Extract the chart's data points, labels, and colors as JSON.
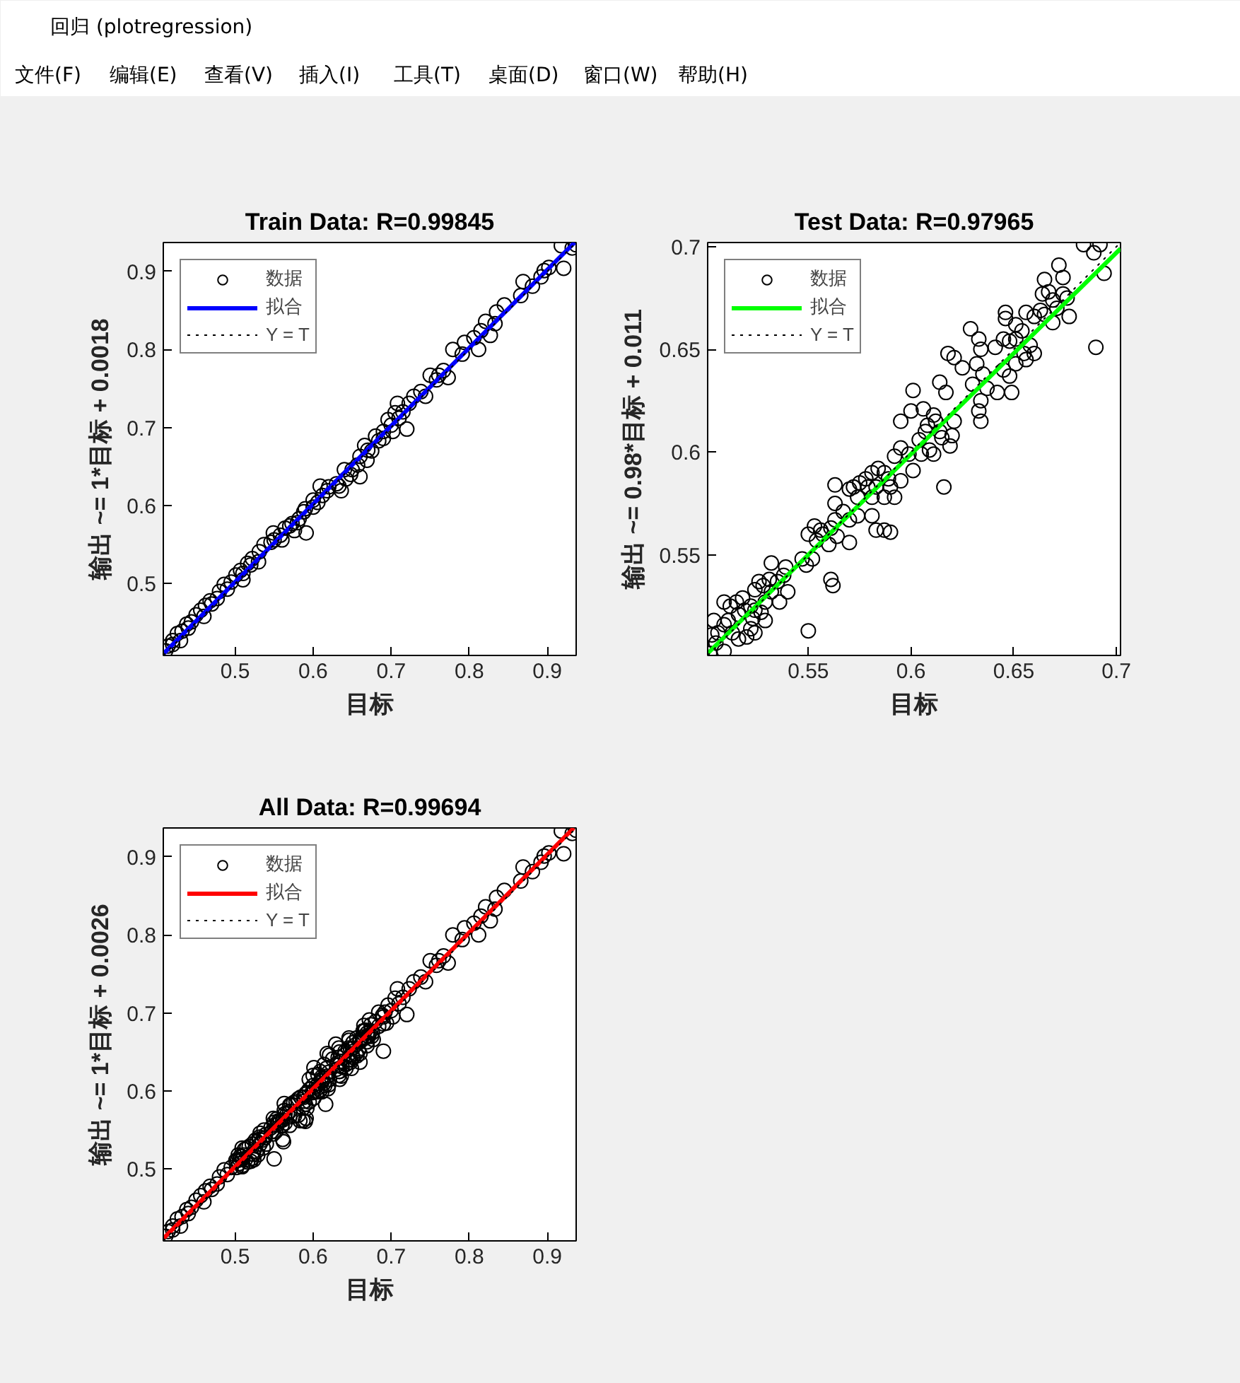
{
  "chart_data": [
    {
      "type": "other",
      "title": "回归 (plotregression)",
      "annotations": [
        "文件(F)",
        "编辑(E)",
        "查看(V)",
        "插入(I)",
        "工具(T)",
        "桌面(D)",
        "窗口(W)",
        "帮助(H)"
      ]
    },
    {
      "type": "scatter",
      "title": "Train Data: R=0.99845",
      "xlabel": "目标",
      "ylabel": "输出 ~= 1*目标 + 0.0018",
      "xlim": [
        0.408,
        0.937
      ],
      "ylim": [
        0.408,
        0.937
      ],
      "xticks": [
        0.5,
        0.6,
        0.7,
        0.8,
        0.9
      ],
      "yticks": [
        0.5,
        0.6,
        0.7,
        0.8,
        0.9
      ],
      "legend": "top left",
      "series": [
        {
          "name": "数据",
          "type": "scatter",
          "marker": "circle",
          "color": "#000000",
          "x": [
            0.918,
            0.937,
            0.932,
            0.921,
            0.902,
            0.896,
            0.892,
            0.869,
            0.881,
            0.866,
            0.845,
            0.835,
            0.833,
            0.821,
            0.815,
            0.827,
            0.806,
            0.812,
            0.794,
            0.791,
            0.779,
            0.761,
            0.758,
            0.767,
            0.773,
            0.75,
            0.738,
            0.744,
            0.729,
            0.723,
            0.708,
            0.705,
            0.72,
            0.696,
            0.702,
            0.69,
            0.684,
            0.675,
            0.666,
            0.669,
            0.657,
            0.66,
            0.648,
            0.642,
            0.633,
            0.636,
            0.618,
            0.612,
            0.606,
            0.609,
            0.6,
            0.588,
            0.591,
            0.582,
            0.573,
            0.576,
            0.564,
            0.558,
            0.549,
            0.546,
            0.537,
            0.531,
            0.522,
            0.516,
            0.507,
            0.51,
            0.501,
            0.495,
            0.486,
            0.48,
            0.477,
            0.468,
            0.462,
            0.456,
            0.45,
            0.444,
            0.438,
            0.432,
            0.426,
            0.42,
            0.414,
            0.411,
            0.55,
            0.56,
            0.57,
            0.58,
            0.59,
            0.6,
            0.62,
            0.63,
            0.64,
            0.65,
            0.66,
            0.67,
            0.68,
            0.69,
            0.7,
            0.71,
            0.715,
            0.53,
            0.52,
            0.51,
            0.49,
            0.47,
            0.46,
            0.44,
            0.43,
            0.42
          ],
          "values": [
            0.933,
            0.934,
            0.93,
            0.904,
            0.905,
            0.901,
            0.893,
            0.887,
            0.881,
            0.869,
            0.857,
            0.848,
            0.833,
            0.836,
            0.824,
            0.818,
            0.815,
            0.8,
            0.809,
            0.794,
            0.8,
            0.767,
            0.761,
            0.773,
            0.764,
            0.767,
            0.746,
            0.74,
            0.74,
            0.731,
            0.731,
            0.719,
            0.698,
            0.71,
            0.695,
            0.695,
            0.683,
            0.67,
            0.677,
            0.658,
            0.652,
            0.637,
            0.64,
            0.634,
            0.625,
            0.619,
            0.619,
            0.613,
            0.604,
            0.625,
            0.598,
            0.592,
            0.565,
            0.583,
            0.577,
            0.568,
            0.571,
            0.562,
            0.565,
            0.553,
            0.55,
            0.541,
            0.532,
            0.526,
            0.517,
            0.505,
            0.511,
            0.502,
            0.499,
            0.49,
            0.481,
            0.478,
            0.472,
            0.466,
            0.46,
            0.451,
            0.448,
            0.439,
            0.436,
            0.427,
            0.42,
            0.414,
            0.556,
            0.556,
            0.574,
            0.578,
            0.596,
            0.607,
            0.624,
            0.628,
            0.646,
            0.646,
            0.663,
            0.671,
            0.689,
            0.686,
            0.703,
            0.712,
            0.72,
            0.528,
            0.524,
            0.513,
            0.493,
            0.474,
            0.458,
            0.443,
            0.427,
            0.422
          ]
        },
        {
          "name": "拟合",
          "type": "line",
          "line_style": "solid",
          "color": "#0000ff",
          "x": [
            0.408,
            0.935
          ],
          "values": [
            0.41,
            0.937
          ]
        },
        {
          "name": "Y = T",
          "type": "line",
          "line_style": "dotted",
          "color": "#000000",
          "x": [
            0.408,
            0.937
          ],
          "values": [
            0.408,
            0.937
          ]
        }
      ]
    },
    {
      "type": "scatter",
      "title": "Test Data: R=0.97965",
      "xlabel": "目标",
      "ylabel": "输出 ~= 0.98*目标 + 0.011",
      "xlim": [
        0.501,
        0.702
      ],
      "ylim": [
        0.501,
        0.702
      ],
      "xticks": [
        0.55,
        0.6,
        0.65,
        0.7
      ],
      "yticks": [
        0.55,
        0.6,
        0.65,
        0.7
      ],
      "legend": "top left",
      "series": [
        {
          "name": "数据",
          "type": "scatter",
          "marker": "circle",
          "color": "#000000",
          "x": [
            0.684,
            0.692,
            0.689,
            0.694,
            0.69,
            0.672,
            0.674,
            0.665,
            0.667,
            0.664,
            0.669,
            0.674,
            0.676,
            0.671,
            0.677,
            0.663,
            0.669,
            0.665,
            0.66,
            0.646,
            0.646,
            0.651,
            0.656,
            0.654,
            0.651,
            0.645,
            0.641,
            0.648,
            0.658,
            0.66,
            0.655,
            0.656,
            0.651,
            0.645,
            0.648,
            0.649,
            0.642,
            0.637,
            0.629,
            0.633,
            0.634,
            0.632,
            0.635,
            0.634,
            0.634,
            0.633,
            0.63,
            0.618,
            0.621,
            0.625,
            0.614,
            0.617,
            0.601,
            0.6,
            0.595,
            0.606,
            0.611,
            0.608,
            0.612,
            0.607,
            0.604,
            0.605,
            0.611,
            0.609,
            0.62,
            0.621,
            0.614,
            0.615,
            0.619,
            0.599,
            0.601,
            0.595,
            0.592,
            0.589,
            0.587,
            0.584,
            0.581,
            0.578,
            0.575,
            0.572,
            0.579,
            0.583,
            0.59,
            0.592,
            0.587,
            0.581,
            0.574,
            0.57,
            0.563,
            0.616,
            0.595,
            0.563,
            0.567,
            0.57,
            0.574,
            0.581,
            0.583,
            0.587,
            0.59,
            0.563,
            0.561,
            0.556,
            0.553,
            0.55,
            0.554,
            0.557,
            0.564,
            0.57,
            0.56,
            0.552,
            0.547,
            0.549,
            0.561,
            0.562,
            0.532,
            0.539,
            0.538,
            0.535,
            0.531,
            0.528,
            0.526,
            0.524,
            0.532,
            0.54,
            0.536,
            0.529,
            0.524,
            0.522,
            0.518,
            0.515,
            0.512,
            0.509,
            0.516,
            0.519,
            0.523,
            0.527,
            0.529,
            0.522,
            0.524,
            0.52,
            0.516,
            0.511,
            0.509,
            0.504,
            0.503,
            0.506,
            0.505,
            0.502,
            0.509,
            0.513,
            0.55
          ],
          "values": [
            0.701,
            0.701,
            0.697,
            0.687,
            0.651,
            0.691,
            0.685,
            0.684,
            0.678,
            0.677,
            0.674,
            0.677,
            0.675,
            0.67,
            0.666,
            0.669,
            0.663,
            0.667,
            0.666,
            0.668,
            0.665,
            0.662,
            0.668,
            0.659,
            0.655,
            0.655,
            0.651,
            0.654,
            0.652,
            0.648,
            0.648,
            0.645,
            0.643,
            0.64,
            0.637,
            0.629,
            0.629,
            0.631,
            0.66,
            0.655,
            0.65,
            0.643,
            0.638,
            0.625,
            0.615,
            0.62,
            0.633,
            0.648,
            0.646,
            0.641,
            0.634,
            0.629,
            0.63,
            0.62,
            0.615,
            0.621,
            0.618,
            0.613,
            0.615,
            0.61,
            0.606,
            0.599,
            0.599,
            0.601,
            0.608,
            0.615,
            0.61,
            0.607,
            0.603,
            0.599,
            0.591,
            0.602,
            0.598,
            0.587,
            0.59,
            0.592,
            0.59,
            0.587,
            0.585,
            0.583,
            0.583,
            0.583,
            0.583,
            0.578,
            0.578,
            0.578,
            0.578,
            0.582,
            0.584,
            0.583,
            0.586,
            0.575,
            0.571,
            0.567,
            0.569,
            0.569,
            0.562,
            0.562,
            0.561,
            0.567,
            0.563,
            0.562,
            0.564,
            0.56,
            0.557,
            0.56,
            0.559,
            0.556,
            0.555,
            0.548,
            0.548,
            0.545,
            0.538,
            0.535,
            0.546,
            0.544,
            0.54,
            0.537,
            0.538,
            0.535,
            0.537,
            0.533,
            0.532,
            0.532,
            0.527,
            0.527,
            0.523,
            0.525,
            0.529,
            0.527,
            0.525,
            0.527,
            0.521,
            0.523,
            0.519,
            0.522,
            0.518,
            0.514,
            0.512,
            0.51,
            0.509,
            0.518,
            0.516,
            0.518,
            0.511,
            0.512,
            0.507,
            0.502,
            0.503,
            0.512,
            0.513
          ]
        },
        {
          "name": "拟合",
          "type": "line",
          "line_style": "solid",
          "color": "#00ff00",
          "x": [
            0.501,
            0.702
          ],
          "values": [
            0.502,
            0.699
          ]
        },
        {
          "name": "Y = T",
          "type": "line",
          "line_style": "dotted",
          "color": "#000000",
          "x": [
            0.501,
            0.702
          ],
          "values": [
            0.501,
            0.702
          ]
        }
      ]
    },
    {
      "type": "scatter",
      "title": "All Data: R=0.99694",
      "xlabel": "目标",
      "ylabel": "输出 ~= 1*目标 + 0.0026",
      "xlim": [
        0.408,
        0.937
      ],
      "ylim": [
        0.408,
        0.937
      ],
      "xticks": [
        0.5,
        0.6,
        0.7,
        0.8,
        0.9
      ],
      "yticks": [
        0.5,
        0.6,
        0.7,
        0.8,
        0.9
      ],
      "legend": "top left",
      "series": [
        {
          "name": "数据",
          "type": "scatter",
          "marker": "circle",
          "color": "#000000",
          "x": [
            0.918,
            0.937,
            0.932,
            0.921,
            0.902,
            0.896,
            0.892,
            0.869,
            0.881,
            0.866,
            0.845,
            0.835,
            0.833,
            0.821,
            0.815,
            0.827,
            0.806,
            0.812,
            0.794,
            0.791,
            0.779,
            0.761,
            0.758,
            0.767,
            0.773,
            0.75,
            0.738,
            0.744,
            0.729,
            0.723,
            0.708,
            0.705,
            0.72,
            0.696,
            0.702,
            0.69,
            0.684,
            0.675,
            0.666,
            0.669,
            0.66,
            0.648,
            0.642,
            0.633,
            0.636,
            0.618,
            0.612,
            0.606,
            0.609,
            0.6,
            0.588,
            0.591,
            0.576,
            0.564,
            0.558,
            0.549,
            0.546,
            0.537,
            0.531,
            0.522,
            0.507,
            0.51,
            0.501,
            0.495,
            0.486,
            0.48,
            0.477,
            0.468,
            0.462,
            0.456,
            0.45,
            0.444,
            0.438,
            0.432,
            0.426,
            0.42,
            0.414,
            0.411,
            0.55,
            0.56,
            0.57,
            0.59,
            0.6,
            0.62,
            0.63,
            0.64,
            0.65,
            0.66,
            0.67,
            0.68,
            0.69,
            0.7,
            0.71,
            0.715,
            0.51,
            0.49,
            0.47,
            0.46,
            0.44,
            0.43,
            0.42,
            0.684,
            0.692,
            0.689,
            0.694,
            0.69,
            0.672,
            0.674,
            0.665,
            0.667,
            0.664,
            0.669,
            0.674,
            0.676,
            0.671,
            0.677,
            0.663,
            0.669,
            0.665,
            0.66,
            0.646,
            0.646,
            0.651,
            0.656,
            0.654,
            0.651,
            0.645,
            0.641,
            0.648,
            0.658,
            0.66,
            0.655,
            0.656,
            0.651,
            0.645,
            0.648,
            0.649,
            0.642,
            0.637,
            0.629,
            0.633,
            0.634,
            0.632,
            0.635,
            0.634,
            0.634,
            0.633,
            0.63,
            0.618,
            0.621,
            0.625,
            0.614,
            0.617,
            0.601,
            0.6,
            0.595,
            0.606,
            0.611,
            0.612,
            0.607,
            0.604,
            0.605,
            0.611,
            0.609,
            0.62,
            0.621,
            0.614,
            0.615,
            0.619,
            0.599,
            0.601,
            0.595,
            0.592,
            0.589,
            0.584,
            0.581,
            0.578,
            0.575,
            0.572,
            0.59,
            0.592,
            0.587,
            0.57,
            0.563,
            0.616,
            0.595,
            0.563,
            0.567,
            0.57,
            0.581,
            0.583,
            0.587,
            0.59,
            0.561,
            0.556,
            0.553,
            0.55,
            0.554,
            0.564,
            0.57,
            0.56,
            0.552,
            0.547,
            0.549,
            0.561,
            0.562,
            0.532,
            0.539,
            0.538,
            0.535,
            0.531,
            0.528,
            0.526,
            0.532,
            0.54,
            0.536,
            0.524,
            0.518,
            0.515,
            0.512,
            0.509,
            0.523,
            0.527,
            0.529,
            0.522,
            0.524,
            0.52,
            0.516,
            0.511,
            0.509,
            0.504,
            0.503,
            0.506,
            0.505,
            0.502,
            0.509,
            0.513,
            0.55
          ],
          "values": [
            0.933,
            0.934,
            0.93,
            0.904,
            0.905,
            0.901,
            0.893,
            0.887,
            0.881,
            0.869,
            0.857,
            0.848,
            0.833,
            0.836,
            0.824,
            0.818,
            0.815,
            0.8,
            0.809,
            0.794,
            0.8,
            0.767,
            0.761,
            0.773,
            0.764,
            0.767,
            0.746,
            0.74,
            0.74,
            0.731,
            0.731,
            0.719,
            0.698,
            0.71,
            0.695,
            0.695,
            0.683,
            0.67,
            0.677,
            0.658,
            0.637,
            0.64,
            0.634,
            0.625,
            0.619,
            0.619,
            0.613,
            0.604,
            0.625,
            0.598,
            0.592,
            0.565,
            0.568,
            0.571,
            0.562,
            0.565,
            0.553,
            0.55,
            0.541,
            0.532,
            0.517,
            0.505,
            0.511,
            0.502,
            0.499,
            0.49,
            0.481,
            0.478,
            0.472,
            0.466,
            0.46,
            0.451,
            0.448,
            0.439,
            0.436,
            0.427,
            0.42,
            0.414,
            0.556,
            0.556,
            0.574,
            0.596,
            0.607,
            0.624,
            0.628,
            0.646,
            0.646,
            0.663,
            0.671,
            0.689,
            0.686,
            0.703,
            0.712,
            0.72,
            0.513,
            0.493,
            0.474,
            0.458,
            0.443,
            0.427,
            0.422,
            0.701,
            0.701,
            0.697,
            0.687,
            0.651,
            0.691,
            0.685,
            0.684,
            0.678,
            0.677,
            0.674,
            0.677,
            0.675,
            0.67,
            0.666,
            0.669,
            0.663,
            0.667,
            0.666,
            0.668,
            0.665,
            0.662,
            0.668,
            0.659,
            0.655,
            0.655,
            0.651,
            0.654,
            0.652,
            0.648,
            0.648,
            0.645,
            0.643,
            0.64,
            0.637,
            0.629,
            0.629,
            0.631,
            0.66,
            0.655,
            0.65,
            0.643,
            0.638,
            0.625,
            0.615,
            0.62,
            0.633,
            0.648,
            0.646,
            0.641,
            0.634,
            0.629,
            0.63,
            0.62,
            0.615,
            0.621,
            0.618,
            0.615,
            0.61,
            0.606,
            0.599,
            0.599,
            0.601,
            0.608,
            0.615,
            0.61,
            0.607,
            0.603,
            0.599,
            0.591,
            0.602,
            0.598,
            0.587,
            0.592,
            0.59,
            0.587,
            0.585,
            0.583,
            0.583,
            0.578,
            0.578,
            0.582,
            0.584,
            0.583,
            0.586,
            0.575,
            0.571,
            0.567,
            0.569,
            0.562,
            0.562,
            0.561,
            0.563,
            0.562,
            0.564,
            0.56,
            0.557,
            0.559,
            0.556,
            0.555,
            0.548,
            0.548,
            0.545,
            0.538,
            0.535,
            0.546,
            0.544,
            0.54,
            0.537,
            0.538,
            0.535,
            0.537,
            0.532,
            0.532,
            0.527,
            0.523,
            0.529,
            0.527,
            0.525,
            0.527,
            0.519,
            0.522,
            0.518,
            0.514,
            0.512,
            0.51,
            0.509,
            0.518,
            0.516,
            0.518,
            0.511,
            0.512,
            0.507,
            0.502,
            0.503,
            0.512,
            0.513
          ]
        },
        {
          "name": "拟合",
          "type": "line",
          "line_style": "solid",
          "color": "#ff0000",
          "x": [
            0.408,
            0.934
          ],
          "values": [
            0.411,
            0.937
          ]
        },
        {
          "name": "Y = T",
          "type": "line",
          "line_style": "dotted",
          "color": "#000000",
          "x": [
            0.408,
            0.937
          ],
          "values": [
            0.408,
            0.937
          ]
        }
      ]
    }
  ]
}
